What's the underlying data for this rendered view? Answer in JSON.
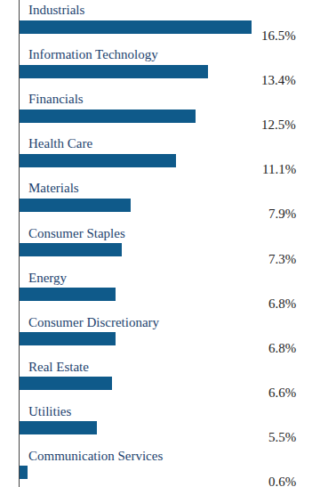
{
  "chart_data": {
    "type": "bar",
    "orientation": "horizontal",
    "categories": [
      "Industrials",
      "Information Technology",
      "Financials",
      "Health Care",
      "Materials",
      "Consumer Staples",
      "Energy",
      "Consumer Discretionary",
      "Real Estate",
      "Utilities",
      "Communication Services"
    ],
    "values": [
      16.5,
      13.4,
      12.5,
      11.1,
      7.9,
      7.3,
      6.8,
      6.8,
      6.6,
      5.5,
      0.6
    ],
    "value_labels": [
      "16.5%",
      "13.4%",
      "12.5%",
      "11.1%",
      "7.9%",
      "7.3%",
      "6.8%",
      "6.8%",
      "6.6%",
      "5.5%",
      "0.6%"
    ],
    "color": "#0f5a8a",
    "xlim": [
      0,
      16.5
    ],
    "xticks": [],
    "data_labels": true,
    "tick_labels": false,
    "grid": false
  }
}
